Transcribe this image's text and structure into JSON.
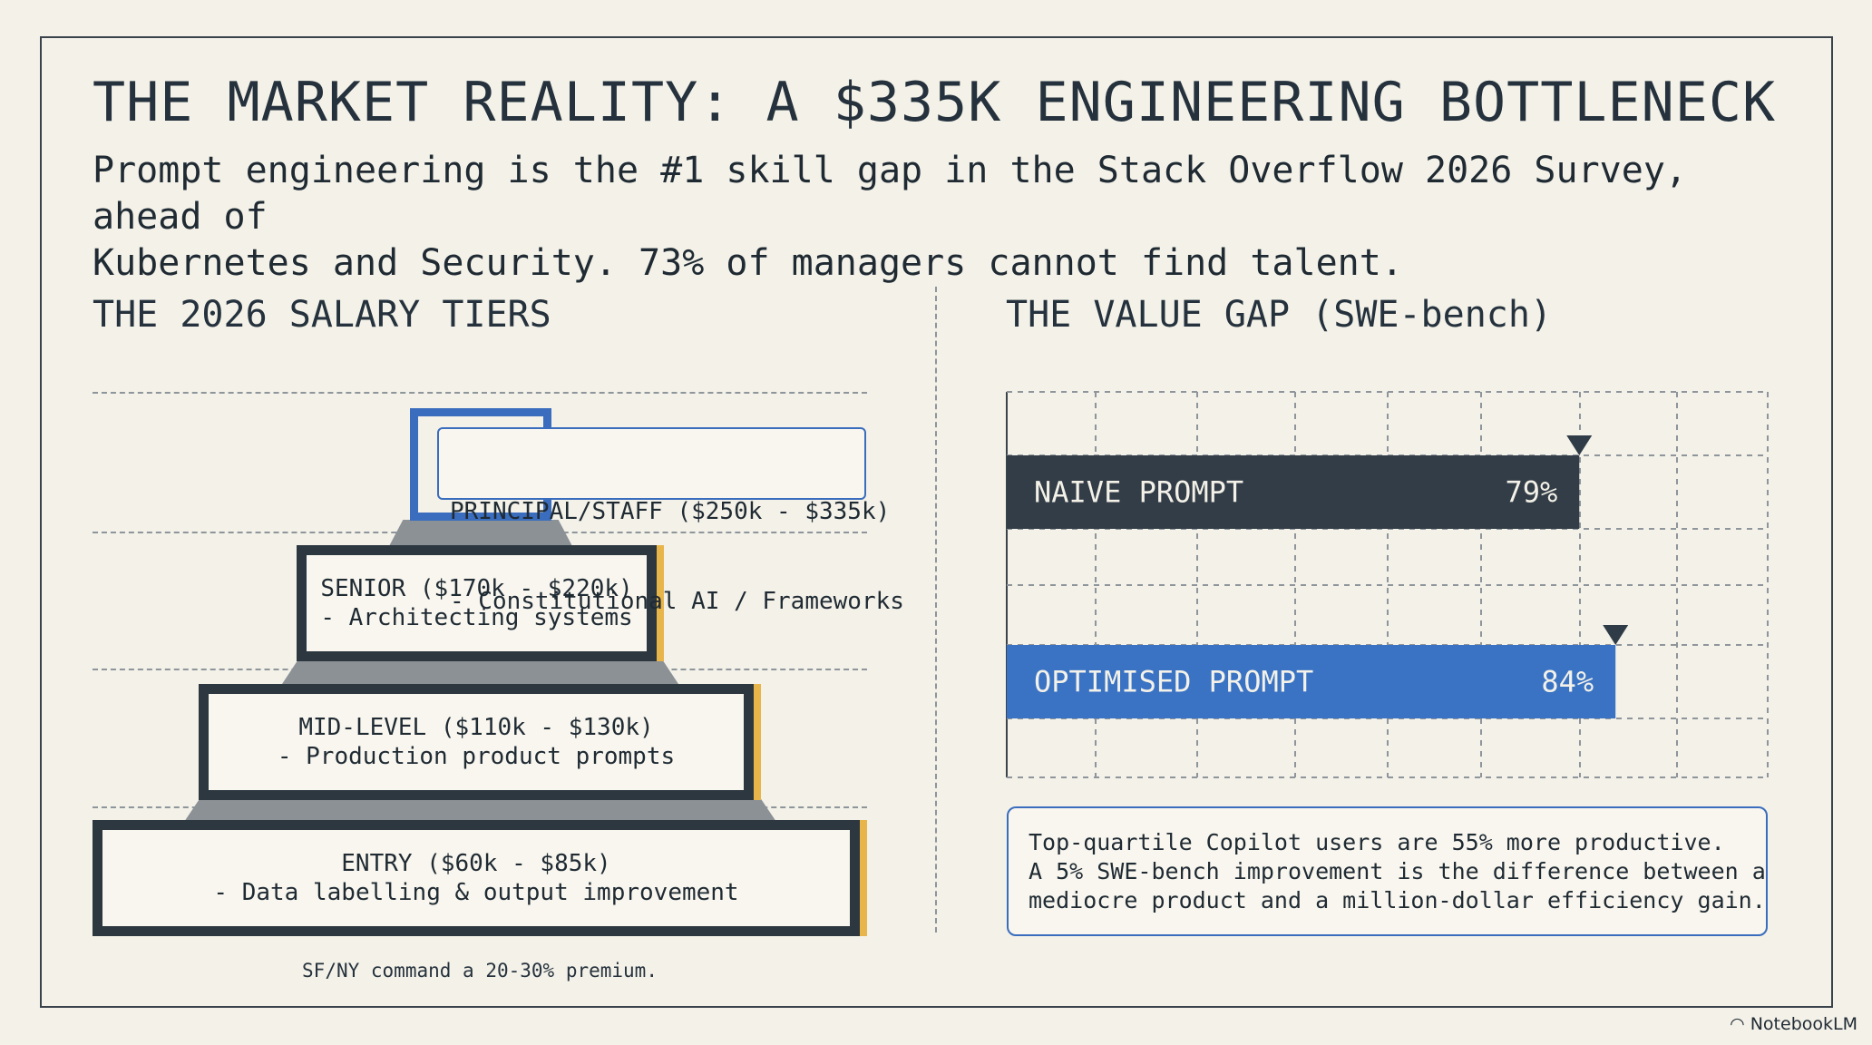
{
  "title": "THE MARKET REALITY: A $335K ENGINEERING BOTTLENECK",
  "subtitle_lines": [
    "Prompt engineering is the #1 skill gap in the Stack Overflow 2026 Survey, ahead of",
    "Kubernetes and Security. 73% of managers cannot find talent."
  ],
  "salary": {
    "heading": "THE 2026 SALARY TIERS",
    "tiers": [
      {
        "label": "PRINCIPAL/STAFF ($250k - $335k)",
        "desc": "- Constitutional AI / Frameworks"
      },
      {
        "label": "SENIOR ($170k - $220k)",
        "desc": "- Architecting systems"
      },
      {
        "label": "MID-LEVEL ($110k - $130k)",
        "desc": "- Production product prompts"
      },
      {
        "label": "ENTRY ($60k - $85k)",
        "desc": "- Data labelling & output improvement"
      }
    ],
    "note": "SF/NY command a 20-30% premium."
  },
  "value_gap": {
    "heading": "THE VALUE GAP (SWE-bench)",
    "info_lines": [
      "Top-quartile Copilot users are 55% more productive.",
      "A 5% SWE-bench improvement is the difference between a",
      "mediocre product and a million-dollar efficiency gain."
    ]
  },
  "chart_data": {
    "type": "bar",
    "orientation": "horizontal",
    "title": "THE VALUE GAP (SWE-bench)",
    "categories": [
      "NAIVE PROMPT",
      "OPTIMISED PROMPT"
    ],
    "values": [
      79,
      84
    ],
    "value_labels": [
      "79%",
      "84%"
    ],
    "xlim": [
      0,
      105
    ],
    "grid": true,
    "colors": {
      "naive": "#333d47",
      "optimised": "#3a73c4",
      "marker": "#2f3b46"
    }
  },
  "brand": "NotebookLM"
}
